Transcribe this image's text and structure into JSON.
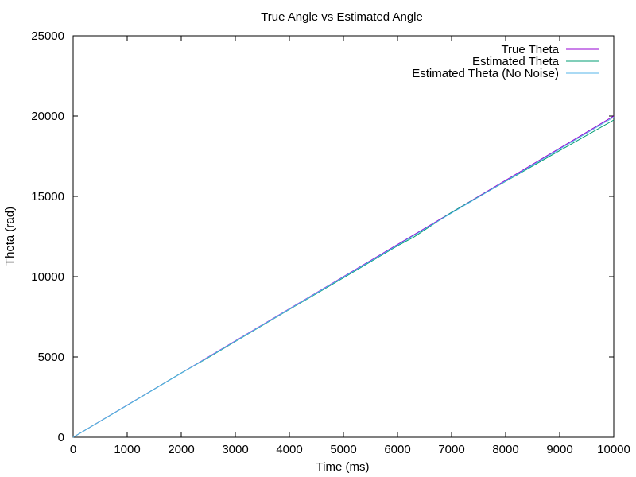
{
  "chart_data": {
    "type": "line",
    "title": "True Angle vs Estimated Angle",
    "xlabel": "Time (ms)",
    "ylabel": "Theta (rad)",
    "xlim": [
      0,
      10000
    ],
    "ylim": [
      0,
      25000
    ],
    "xticks": [
      0,
      1000,
      2000,
      3000,
      4000,
      5000,
      6000,
      7000,
      8000,
      9000,
      10000
    ],
    "yticks": [
      0,
      5000,
      10000,
      15000,
      20000,
      25000
    ],
    "xtick_labels": [
      "0",
      "1000",
      "2000",
      "3000",
      "4000",
      "5000",
      "6000",
      "7000",
      "8000",
      "9000",
      "10000"
    ],
    "ytick_labels": [
      "0",
      "5000",
      "10000",
      "15000",
      "20000",
      "25000"
    ],
    "grid": false,
    "legend_position": "top-right",
    "series": [
      {
        "name": "True Theta",
        "color": "#9400d3",
        "x": [
          0,
          10000
        ],
        "y": [
          0,
          20000
        ]
      },
      {
        "name": "Estimated Theta",
        "color": "#009e73",
        "x": [
          0,
          1000,
          2000,
          2500,
          3000,
          4000,
          5000,
          6000,
          6300,
          7000,
          8000,
          9000,
          10000
        ],
        "y": [
          0,
          1990,
          4000,
          4960,
          5960,
          7960,
          9930,
          11920,
          12460,
          14010,
          15930,
          17850,
          19750
        ]
      },
      {
        "name": "Estimated Theta (No Noise)",
        "color": "#56b4e9",
        "x": [
          0,
          1000,
          2000,
          3000,
          4000,
          5000,
          6000,
          7000,
          8000,
          9000,
          10000
        ],
        "y": [
          0,
          1990,
          3990,
          5980,
          7980,
          9970,
          11960,
          13960,
          15950,
          17940,
          19930
        ]
      }
    ]
  }
}
